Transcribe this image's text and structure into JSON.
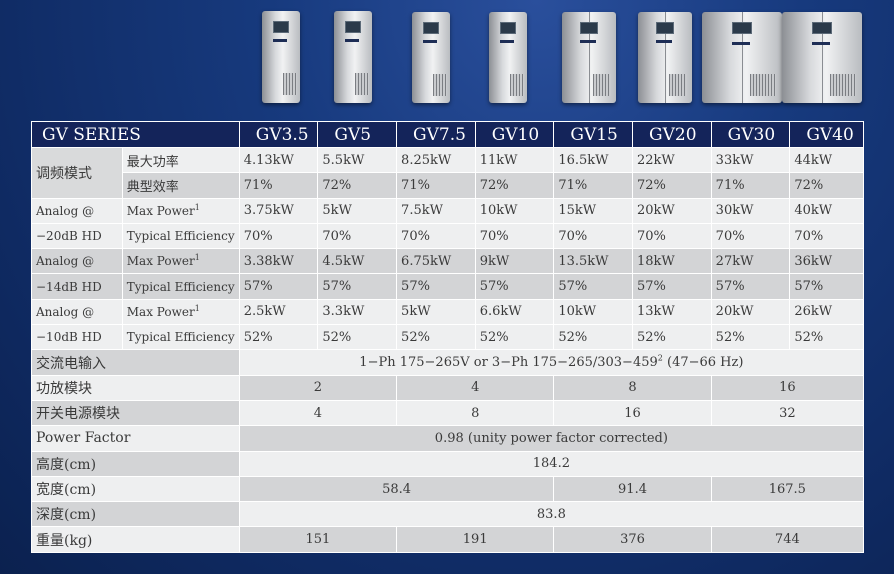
{
  "header": {
    "series_label": "GV SERIES",
    "models": [
      "GV3.5",
      "GV5",
      "GV7.5",
      "GV10",
      "GV15",
      "GV20",
      "GV30",
      "GV40"
    ]
  },
  "groups": {
    "fm": {
      "label": "调频模式"
    },
    "a20": {
      "label_line1": "Analog @",
      "label_line2": "−20dB HD"
    },
    "a14": {
      "label_line1": "Analog @",
      "label_line2": "−14dB HD"
    },
    "a10": {
      "label_line1": "Analog @",
      "label_line2": "−10dB HD"
    }
  },
  "rows": {
    "fm_max": {
      "label": "最大功率",
      "values": [
        "4.13kW",
        "5.5kW",
        "8.25kW",
        "11kW",
        "16.5kW",
        "22kW",
        "33kW",
        "44kW"
      ]
    },
    "fm_eff": {
      "label": "典型效率",
      "values": [
        "71%",
        "72%",
        "71%",
        "72%",
        "71%",
        "72%",
        "71%",
        "72%"
      ]
    },
    "a20_max": {
      "label": "Max Power",
      "sup": "1",
      "values": [
        "3.75kW",
        "5kW",
        "7.5kW",
        "10kW",
        "15kW",
        "20kW",
        "30kW",
        "40kW"
      ]
    },
    "a20_eff": {
      "label": "Typical Efficiency",
      "values": [
        "70%",
        "70%",
        "70%",
        "70%",
        "70%",
        "70%",
        "70%",
        "70%"
      ]
    },
    "a14_max": {
      "label": "Max Power",
      "sup": "1",
      "values": [
        "3.38kW",
        "4.5kW",
        "6.75kW",
        "9kW",
        "13.5kW",
        "18kW",
        "27kW",
        "36kW"
      ]
    },
    "a14_eff": {
      "label": "Typical Efficiency",
      "values": [
        "57%",
        "57%",
        "57%",
        "57%",
        "57%",
        "57%",
        "57%",
        "57%"
      ]
    },
    "a10_max": {
      "label": "Max Power",
      "sup": "1",
      "values": [
        "2.5kW",
        "3.3kW",
        "5kW",
        "6.6kW",
        "10kW",
        "13kW",
        "20kW",
        "26kW"
      ]
    },
    "a10_eff": {
      "label": "Typical Efficiency",
      "values": [
        "52%",
        "52%",
        "52%",
        "52%",
        "52%",
        "52%",
        "52%",
        "52%"
      ]
    }
  },
  "specs": {
    "ac_input": {
      "label": "交流电输入",
      "value": "1−Ph 175−265V or 3−Ph 175−265/303−459",
      "sup": "2",
      "suffix": " (47−66 Hz)"
    },
    "pa_modules": {
      "label": "功放模块",
      "values": [
        "2",
        "4",
        "8",
        "16"
      ]
    },
    "psu_modules": {
      "label": "开关电源模块",
      "values": [
        "4",
        "8",
        "16",
        "32"
      ]
    },
    "power_factor": {
      "label": "Power Factor",
      "value": "0.98 (unity power factor corrected)"
    },
    "height": {
      "label": "高度(cm)",
      "value": "184.2"
    },
    "width": {
      "label": "宽度(cm)",
      "values": [
        "58.4",
        "91.4",
        "167.5"
      ]
    },
    "depth": {
      "label": "深度(cm)",
      "value": "83.8"
    },
    "weight": {
      "label": "重量(kg)",
      "values": [
        "151",
        "191",
        "376",
        "744"
      ]
    }
  }
}
